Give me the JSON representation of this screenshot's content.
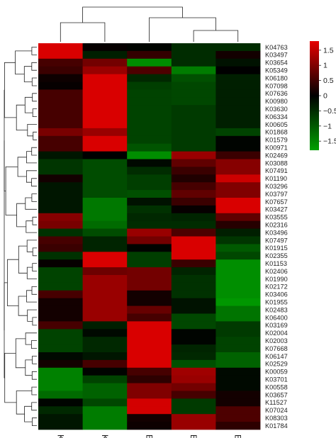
{
  "chart_data": {
    "type": "heatmap",
    "title": "",
    "xlabel": "",
    "ylabel": "",
    "columns": [
      "K1",
      "K3",
      "B2",
      "B1",
      "B4"
    ],
    "rows": [
      "K04763",
      "K03497",
      "K03654",
      "K05349",
      "K06180",
      "K07098",
      "K07636",
      "K00980",
      "K03630",
      "K06334",
      "K00605",
      "K01868",
      "K01579",
      "K00971",
      "K02469",
      "K03088",
      "K07491",
      "K01190",
      "K03296",
      "K03797",
      "K07657",
      "K03427",
      "K03555",
      "K02316",
      "K03496",
      "K07497",
      "K01915",
      "K02355",
      "K01153",
      "K02406",
      "K01990",
      "K02172",
      "K03406",
      "K01955",
      "K02483",
      "K06400",
      "K03169",
      "K02004",
      "K02003",
      "K07668",
      "K06147",
      "K02529",
      "K00059",
      "K03701",
      "K00558",
      "K03657",
      "K11527",
      "K07024",
      "K08303",
      "K01784"
    ],
    "values": [
      [
        1.7,
        0.05,
        -0.05,
        -0.5,
        -0.5
      ],
      [
        1.7,
        -0.35,
        0.4,
        -0.5,
        0.15
      ],
      [
        0.55,
        0.9,
        -1.6,
        -0.5,
        -0.2
      ],
      [
        0.45,
        1.2,
        0.6,
        -1.4,
        0.0
      ],
      [
        0.1,
        1.7,
        -0.45,
        -0.9,
        -0.35
      ],
      [
        0.05,
        1.7,
        -0.7,
        -0.8,
        -0.35
      ],
      [
        0.55,
        1.7,
        -0.75,
        -0.8,
        -0.35
      ],
      [
        0.55,
        1.7,
        -0.75,
        -0.8,
        -0.35
      ],
      [
        0.55,
        1.7,
        -0.75,
        -0.65,
        -0.35
      ],
      [
        0.55,
        1.7,
        -0.75,
        -0.65,
        -0.35
      ],
      [
        0.55,
        1.7,
        -0.75,
        -0.65,
        -0.35
      ],
      [
        0.95,
        1.2,
        -0.75,
        -0.65,
        -0.75
      ],
      [
        0.55,
        1.7,
        -0.75,
        -0.65,
        -0.05
      ],
      [
        0.55,
        1.7,
        -0.95,
        -0.65,
        -0.05
      ],
      [
        -0.25,
        0.0,
        -1.6,
        1.2,
        0.45
      ],
      [
        -0.6,
        -0.85,
        -0.1,
        0.75,
        1.05
      ],
      [
        -0.6,
        -0.85,
        -0.5,
        0.45,
        1.05
      ],
      [
        0.15,
        -0.85,
        -0.7,
        0.25,
        1.6
      ],
      [
        -0.25,
        -0.85,
        -0.7,
        0.55,
        1.0
      ],
      [
        -0.25,
        -0.85,
        -0.9,
        0.75,
        1.0
      ],
      [
        -0.25,
        -1.35,
        -0.2,
        0.45,
        1.7
      ],
      [
        -0.25,
        -1.35,
        -0.55,
        0.05,
        1.7
      ],
      [
        1.05,
        -1.35,
        -0.45,
        -0.4,
        0.75
      ],
      [
        0.95,
        -1.2,
        -0.5,
        -0.5,
        0.3
      ],
      [
        -0.55,
        -0.85,
        1.2,
        0.6,
        -0.35
      ],
      [
        0.55,
        -0.4,
        0.9,
        1.7,
        -0.6
      ],
      [
        0.45,
        -0.4,
        -0.05,
        1.7,
        -1.0
      ],
      [
        -0.55,
        1.7,
        -0.7,
        1.7,
        -0.8
      ],
      [
        0.05,
        1.7,
        -0.7,
        0.45,
        -1.6
      ],
      [
        -0.75,
        0.85,
        0.9,
        -0.4,
        -1.6
      ],
      [
        -0.75,
        1.2,
        0.9,
        -0.55,
        -1.6
      ],
      [
        -0.75,
        1.2,
        0.9,
        -0.55,
        -1.6
      ],
      [
        0.55,
        1.2,
        0.15,
        -0.55,
        -1.6
      ],
      [
        0.15,
        1.2,
        0.15,
        -0.2,
        -1.7
      ],
      [
        0.15,
        1.2,
        0.8,
        -0.2,
        -1.3
      ],
      [
        0.15,
        1.2,
        0.55,
        -0.8,
        -1.3
      ],
      [
        0.55,
        -0.35,
        1.7,
        -0.8,
        -0.65
      ],
      [
        -0.75,
        -0.1,
        1.7,
        -0.05,
        -0.65
      ],
      [
        -0.75,
        -0.45,
        1.7,
        -0.05,
        -0.75
      ],
      [
        -0.75,
        -0.45,
        1.7,
        -0.4,
        -0.75
      ],
      [
        -0.1,
        -0.25,
        1.7,
        -0.45,
        -1.1
      ],
      [
        0.15,
        0.55,
        1.7,
        -0.9,
        -1.1
      ],
      [
        -1.45,
        -0.05,
        0.55,
        1.25,
        -0.1
      ],
      [
        -1.45,
        -0.75,
        0.35,
        1.2,
        -0.1
      ],
      [
        -1.45,
        -1.1,
        1.0,
        0.9,
        -0.1
      ],
      [
        -1.2,
        -1.1,
        1.0,
        0.55,
        0.15
      ],
      [
        -0.05,
        -0.8,
        1.65,
        -0.65,
        0.15
      ],
      [
        -0.45,
        -1.4,
        1.65,
        -0.65,
        0.6
      ],
      [
        -0.25,
        -1.4,
        0.15,
        1.2,
        0.6
      ],
      [
        -0.25,
        -1.4,
        0.1,
        1.2,
        0.35
      ]
    ],
    "legend": {
      "ticks": [
        "1.5",
        "1",
        "0.5",
        "0",
        "−0.5",
        "−1",
        "−1.5"
      ],
      "tick_values": [
        1.5,
        1,
        0.5,
        0,
        -0.5,
        -1,
        -1.5
      ],
      "range": [
        -1.8,
        1.8
      ],
      "placement": "top-right"
    },
    "colors": {
      "high": "#e60000",
      "mid": "#000000",
      "low": "#00a000"
    },
    "dendrograms": {
      "row": "left",
      "column": "top"
    }
  }
}
